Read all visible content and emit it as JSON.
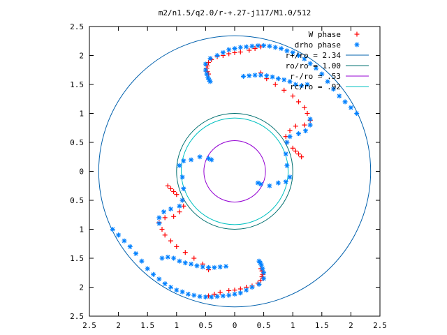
{
  "chart_data": {
    "type": "scatter",
    "title": "m2/n1.5/q2.0/r-+.27-j117/M1.0/512",
    "xlabel": "",
    "ylabel": "",
    "xlim": [
      -2.5,
      2.5
    ],
    "ylim": [
      -2.5,
      2.5
    ],
    "grid": false,
    "legend_position": "top-right",
    "x_ticks": [
      {
        "value": -2.5,
        "label": "2.5"
      },
      {
        "value": -2,
        "label": "2"
      },
      {
        "value": -1.5,
        "label": "1.5"
      },
      {
        "value": -1,
        "label": "1"
      },
      {
        "value": -0.5,
        "label": "0.5"
      },
      {
        "value": 0,
        "label": "0"
      },
      {
        "value": 0.5,
        "label": "0.5"
      },
      {
        "value": 1,
        "label": "1"
      },
      {
        "value": 1.5,
        "label": "1.5"
      },
      {
        "value": 2,
        "label": "2"
      },
      {
        "value": 2.5,
        "label": "2.5"
      }
    ],
    "y_ticks": [
      {
        "value": -2.5,
        "label": "2.5"
      },
      {
        "value": -2,
        "label": "2"
      },
      {
        "value": -1.5,
        "label": "1.5"
      },
      {
        "value": -1,
        "label": "1"
      },
      {
        "value": -0.5,
        "label": "0.5"
      },
      {
        "value": 0,
        "label": "0"
      },
      {
        "value": 0.5,
        "label": "0.5"
      },
      {
        "value": 1,
        "label": "1"
      },
      {
        "value": 1.5,
        "label": "1.5"
      },
      {
        "value": 2,
        "label": "2"
      },
      {
        "value": 2.5,
        "label": "2.5"
      }
    ],
    "series": [
      {
        "name": "W phase",
        "marker": "plus",
        "color": "#ff0000",
        "x": [
          -0.45,
          -0.35,
          -0.25,
          -0.1,
          0.0,
          0.1,
          0.2,
          0.3,
          0.4,
          0.45,
          0.47,
          0.48,
          0.47,
          0.45,
          -0.45,
          -0.55,
          -0.7,
          -0.85,
          -1.0,
          -1.1,
          -1.2,
          -1.25,
          -1.3,
          -1.2,
          -1.05,
          -0.95,
          -0.88,
          -0.9,
          -1.0,
          -1.05,
          -1.1,
          -1.15,
          0.45,
          0.35,
          0.25,
          0.1,
          0.0,
          -0.1,
          -0.2,
          -0.3,
          -0.4,
          -0.45,
          -0.47,
          -0.48,
          -0.47,
          -0.45,
          0.45,
          0.55,
          0.7,
          0.85,
          1.0,
          1.1,
          1.2,
          1.25,
          1.3,
          1.2,
          1.05,
          0.95,
          0.88,
          0.9,
          1.0,
          1.05,
          1.1,
          1.15
        ],
        "y": [
          -2.15,
          -2.12,
          -2.09,
          -2.06,
          -2.05,
          -2.03,
          -2.0,
          -1.98,
          -1.93,
          -1.88,
          -1.82,
          -1.78,
          -1.72,
          -1.68,
          -1.7,
          -1.6,
          -1.5,
          -1.4,
          -1.3,
          -1.2,
          -1.1,
          -1.0,
          -0.88,
          -0.8,
          -0.78,
          -0.7,
          -0.6,
          -0.5,
          -0.4,
          -0.35,
          -0.3,
          -0.25,
          2.15,
          2.12,
          2.09,
          2.06,
          2.05,
          2.03,
          2.0,
          1.98,
          1.93,
          1.88,
          1.82,
          1.78,
          1.72,
          1.68,
          1.7,
          1.6,
          1.5,
          1.4,
          1.3,
          1.2,
          1.1,
          1.0,
          0.88,
          0.8,
          0.78,
          0.7,
          0.6,
          0.5,
          0.4,
          0.35,
          0.3,
          0.25
        ]
      },
      {
        "name": "drho phase",
        "marker": "star",
        "color": "#0080ff",
        "x": [
          -2.1,
          -2.0,
          -1.9,
          -1.8,
          -1.7,
          -1.6,
          -1.5,
          -1.4,
          -1.3,
          -1.2,
          -1.1,
          -1.0,
          -0.9,
          -0.8,
          -0.7,
          -0.6,
          -0.5,
          -0.4,
          -0.3,
          -0.2,
          -0.1,
          0.0,
          0.1,
          0.2,
          0.3,
          0.42,
          0.5,
          0.5,
          0.48,
          0.46,
          0.44,
          0.42,
          -1.25,
          -1.15,
          -1.05,
          -0.95,
          -0.85,
          -0.75,
          -0.65,
          -0.55,
          -0.45,
          -0.35,
          -0.25,
          -0.15,
          -1.3,
          -1.3,
          -1.22,
          -1.1,
          -0.95,
          -0.9,
          -0.88,
          -0.9,
          -0.95,
          -0.88,
          -0.75,
          -0.6,
          -0.45,
          -0.4,
          2.1,
          2.0,
          1.9,
          1.8,
          1.7,
          1.6,
          1.5,
          1.4,
          1.3,
          1.2,
          1.1,
          1.0,
          0.9,
          0.8,
          0.7,
          0.6,
          0.5,
          0.4,
          0.3,
          0.2,
          0.1,
          0.0,
          -0.1,
          -0.2,
          -0.3,
          -0.42,
          -0.5,
          -0.5,
          -0.48,
          -0.46,
          -0.44,
          -0.42,
          1.25,
          1.15,
          1.05,
          0.95,
          0.85,
          0.75,
          0.65,
          0.55,
          0.45,
          0.35,
          0.25,
          0.15,
          1.3,
          1.3,
          1.22,
          1.1,
          0.95,
          0.9,
          0.88,
          0.9,
          0.95,
          0.88,
          0.75,
          0.6,
          0.45,
          0.4
        ],
        "y": [
          -1.0,
          -1.1,
          -1.2,
          -1.3,
          -1.42,
          -1.55,
          -1.68,
          -1.78,
          -1.86,
          -1.94,
          -2.0,
          -2.05,
          -2.08,
          -2.12,
          -2.14,
          -2.16,
          -2.17,
          -2.17,
          -2.16,
          -2.15,
          -2.14,
          -2.12,
          -2.1,
          -2.05,
          -2.0,
          -1.95,
          -1.85,
          -1.75,
          -1.68,
          -1.62,
          -1.58,
          -1.55,
          -1.5,
          -1.48,
          -1.5,
          -1.55,
          -1.58,
          -1.6,
          -1.63,
          -1.65,
          -1.66,
          -1.66,
          -1.65,
          -1.64,
          -0.9,
          -0.8,
          -0.7,
          -0.65,
          -0.6,
          -0.5,
          -0.3,
          -0.1,
          0.1,
          0.18,
          0.2,
          0.25,
          0.22,
          0.2,
          1.0,
          1.1,
          1.2,
          1.3,
          1.42,
          1.55,
          1.68,
          1.78,
          1.86,
          1.94,
          2.0,
          2.05,
          2.08,
          2.12,
          2.14,
          2.16,
          2.17,
          2.17,
          2.16,
          2.15,
          2.14,
          2.12,
          2.1,
          2.05,
          2.0,
          1.95,
          1.85,
          1.75,
          1.68,
          1.62,
          1.58,
          1.55,
          1.5,
          1.48,
          1.5,
          1.55,
          1.58,
          1.6,
          1.63,
          1.65,
          1.66,
          1.66,
          1.65,
          1.64,
          0.9,
          0.8,
          0.7,
          0.65,
          0.6,
          0.5,
          0.3,
          0.1,
          -0.1,
          -0.18,
          -0.2,
          -0.25,
          -0.22,
          -0.2
        ]
      },
      {
        "name": "r+/ro = 2.34",
        "type": "circle",
        "radius": 2.34,
        "color": "#0060ad"
      },
      {
        "name": "ro/ro = 1.00",
        "type": "circle",
        "radius": 1.0,
        "color": "#007070"
      },
      {
        "name": "r-/ro =  .53",
        "type": "circle",
        "radius": 0.53,
        "color": "#9400d3"
      },
      {
        "name": "rc/ro =  .92",
        "type": "circle",
        "radius": 0.92,
        "color": "#00c0c0"
      }
    ]
  }
}
